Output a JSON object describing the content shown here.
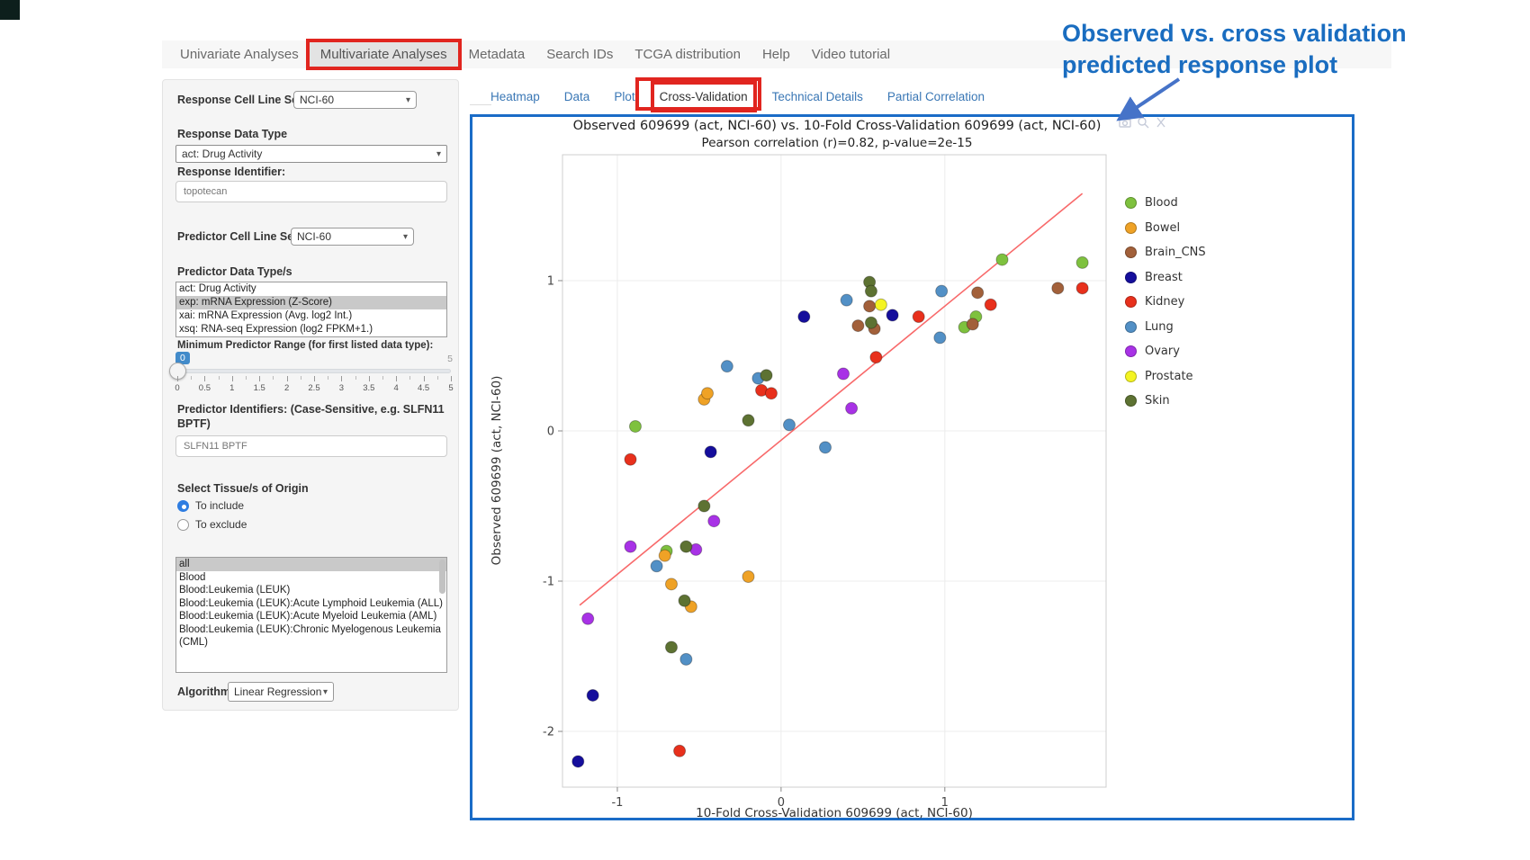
{
  "colors": {
    "plot_border_blue": "#1a6cc7",
    "red_annotation_box": "#e1251f",
    "annotation_blue": "#1a6dc0",
    "link_blue": "#3a77b5",
    "trendline_red": "#f8696a"
  },
  "nav": {
    "items": [
      {
        "label": "Univariate Analyses",
        "active": false
      },
      {
        "label": "Multivariate Analyses",
        "active": true
      },
      {
        "label": "Metadata",
        "active": false
      },
      {
        "label": "Search IDs",
        "active": false
      },
      {
        "label": "TCGA distribution",
        "active": false
      },
      {
        "label": "Help",
        "active": false
      },
      {
        "label": "Video tutorial",
        "active": false
      }
    ]
  },
  "tabs": {
    "items": [
      {
        "label": "Heatmap",
        "active": false
      },
      {
        "label": "Data",
        "active": false
      },
      {
        "label": "Plot",
        "active": false
      },
      {
        "label": "Cross-Validation",
        "active": true
      },
      {
        "label": "Technical Details",
        "active": false
      },
      {
        "label": "Partial Correlation",
        "active": false
      }
    ]
  },
  "sidebar": {
    "response_cell_line_set": {
      "label": "Response Cell Line Set",
      "value": "NCI-60"
    },
    "response_data_type": {
      "label": "Response Data Type",
      "value": "act: Drug Activity"
    },
    "response_identifier": {
      "label": "Response Identifier:",
      "value": "topotecan"
    },
    "predictor_cell_line_set": {
      "label": "Predictor Cell Line Set",
      "value": "NCI-60"
    },
    "predictor_data_types": {
      "label": "Predictor Data Type/s",
      "options": [
        "act: Drug Activity",
        "exp: mRNA Expression (Z-Score)",
        "xai: mRNA Expression (Avg. log2 Int.)",
        "xsq: RNA-seq Expression (log2 FPKM+1.)"
      ],
      "selected_index": 1
    },
    "min_predictor_range": {
      "label": "Minimum Predictor Range (for first listed data type):",
      "value": "0",
      "max_label": "5",
      "tick_labels": [
        "0",
        "0.5",
        "1",
        "1.5",
        "2",
        "2.5",
        "3",
        "3.5",
        "4",
        "4.5",
        "5"
      ]
    },
    "predictor_identifiers": {
      "label": "Predictor Identifiers: (Case-Sensitive, e.g. SLFN11 BPTF)",
      "value": "SLFN11 BPTF"
    },
    "tissue_origin": {
      "label": "Select Tissue/s of Origin",
      "radios": [
        {
          "label": "To include",
          "selected": true
        },
        {
          "label": "To exclude",
          "selected": false
        }
      ],
      "options": [
        "all",
        "Blood",
        "Blood:Leukemia (LEUK)",
        "Blood:Leukemia (LEUK):Acute Lymphoid Leukemia (ALL)",
        "Blood:Leukemia (LEUK):Acute Myeloid Leukemia (AML)",
        "Blood:Leukemia (LEUK):Chronic Myelogenous Leukemia (CML)"
      ],
      "selected_index": 0
    },
    "algorithm": {
      "label": "Algorithm",
      "value": "Linear Regression"
    }
  },
  "annotation": {
    "line1": "Observed vs. cross validation",
    "line2": "predicted response plot"
  },
  "modebar": {
    "icons": [
      "camera-icon",
      "zoom-icon",
      "close-icon"
    ]
  },
  "chart_data": {
    "type": "scatter",
    "title_line1": "Observed 609699 (act, NCI-60) vs. 10-Fold Cross-Validation 609699 (act, NCI-60)",
    "title_line2": "Pearson correlation (r)=0.82, p-value=2e-15",
    "xlabel": "10-Fold Cross-Validation 609699 (act, NCI-60)",
    "ylabel": "Observed 609699 (act, NCI-60)",
    "x_range": [
      -1.335,
      1.985
    ],
    "y_range": [
      -2.371,
      1.838
    ],
    "x_ticks": [
      -1,
      0,
      1
    ],
    "y_ticks": [
      1,
      0,
      -1,
      -2
    ],
    "grid": true,
    "legend_position": "right",
    "trendline": {
      "color": "#f8696a",
      "points": [
        [
          -1.23,
          -1.16
        ],
        [
          1.84,
          1.58
        ]
      ]
    },
    "series": [
      {
        "name": "Blood",
        "color": "#7ec13e",
        "points": [
          [
            -0.89,
            0.03
          ],
          [
            1.35,
            1.14
          ],
          [
            1.84,
            1.12
          ],
          [
            1.19,
            0.76
          ],
          [
            1.12,
            0.69
          ],
          [
            -0.7,
            -0.8
          ]
        ]
      },
      {
        "name": "Bowel",
        "color": "#efa226",
        "points": [
          [
            -0.47,
            0.21
          ],
          [
            -0.45,
            0.25
          ],
          [
            -0.71,
            -0.83
          ],
          [
            -0.2,
            -0.97
          ],
          [
            -0.67,
            -1.02
          ],
          [
            -0.55,
            -1.17
          ]
        ]
      },
      {
        "name": "Brain_CNS",
        "color": "#a2603a",
        "points": [
          [
            1.2,
            0.92
          ],
          [
            0.54,
            0.83
          ],
          [
            0.47,
            0.7
          ],
          [
            0.57,
            0.68
          ],
          [
            1.17,
            0.71
          ],
          [
            1.69,
            0.95
          ]
        ]
      },
      {
        "name": "Breast",
        "color": "#150e9c",
        "points": [
          [
            0.68,
            0.77
          ],
          [
            0.14,
            0.76
          ],
          [
            -0.43,
            -0.14
          ],
          [
            -1.15,
            -1.76
          ],
          [
            -1.24,
            -2.2
          ]
        ]
      },
      {
        "name": "Kidney",
        "color": "#e8301c",
        "points": [
          [
            1.28,
            0.84
          ],
          [
            0.84,
            0.76
          ],
          [
            0.58,
            0.49
          ],
          [
            -0.12,
            0.27
          ],
          [
            -0.06,
            0.25
          ],
          [
            1.84,
            0.95
          ],
          [
            -0.92,
            -0.19
          ],
          [
            -0.62,
            -2.13
          ]
        ]
      },
      {
        "name": "Lung",
        "color": "#5290c6",
        "points": [
          [
            0.98,
            0.93
          ],
          [
            0.4,
            0.87
          ],
          [
            0.97,
            0.62
          ],
          [
            -0.33,
            0.43
          ],
          [
            -0.14,
            0.35
          ],
          [
            0.05,
            0.04
          ],
          [
            0.27,
            -0.11
          ],
          [
            -0.76,
            -0.9
          ],
          [
            -0.58,
            -1.52
          ]
        ]
      },
      {
        "name": "Ovary",
        "color": "#a832e6",
        "points": [
          [
            0.38,
            0.38
          ],
          [
            0.43,
            0.15
          ],
          [
            -0.41,
            -0.6
          ],
          [
            -0.92,
            -0.77
          ],
          [
            -0.52,
            -0.79
          ],
          [
            -1.18,
            -1.25
          ]
        ]
      },
      {
        "name": "Prostate",
        "color": "#f4f422",
        "points": [
          [
            0.61,
            0.84
          ]
        ]
      },
      {
        "name": "Skin",
        "color": "#5d7232",
        "points": [
          [
            0.54,
            0.99
          ],
          [
            0.55,
            0.93
          ],
          [
            0.55,
            0.72
          ],
          [
            -0.09,
            0.37
          ],
          [
            -0.2,
            0.07
          ],
          [
            -0.47,
            -0.5
          ],
          [
            -0.58,
            -0.77
          ],
          [
            -0.59,
            -1.13
          ],
          [
            -0.67,
            -1.44
          ]
        ]
      }
    ]
  }
}
